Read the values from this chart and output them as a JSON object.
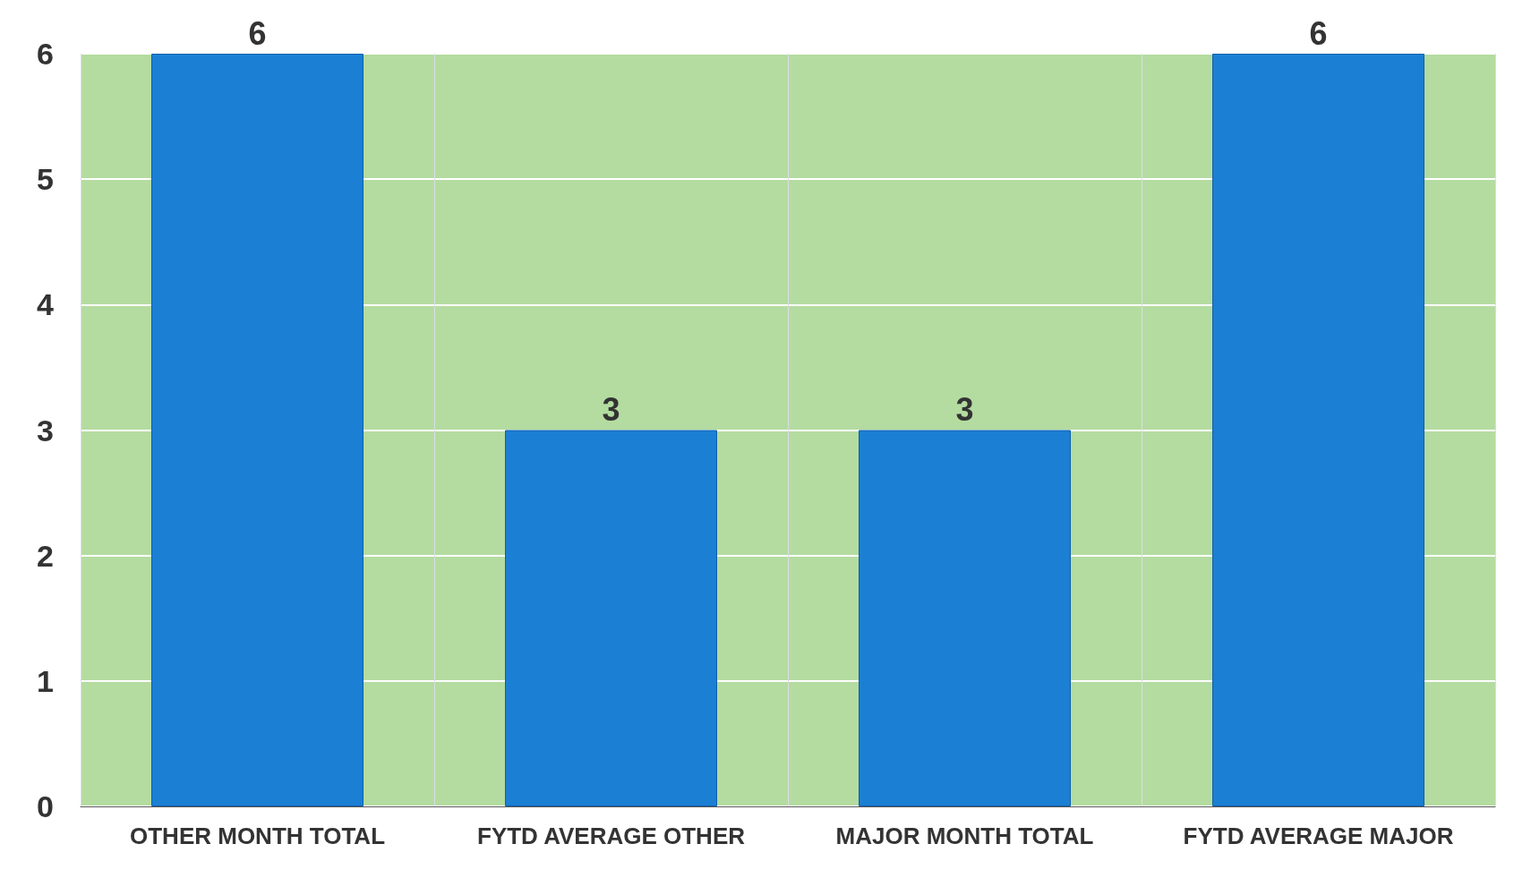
{
  "chart_data": {
    "type": "bar",
    "categories": [
      "OTHER MONTH TOTAL",
      "FYTD AVERAGE OTHER",
      "MAJOR MONTH TOTAL",
      "FYTD AVERAGE MAJOR"
    ],
    "values": [
      6,
      3,
      3,
      6
    ],
    "color": "#1b7fd4",
    "ylim": [
      0,
      6
    ],
    "yticks": [
      0,
      1,
      2,
      3,
      4,
      5,
      6
    ],
    "grid": true,
    "data_labels": true
  }
}
